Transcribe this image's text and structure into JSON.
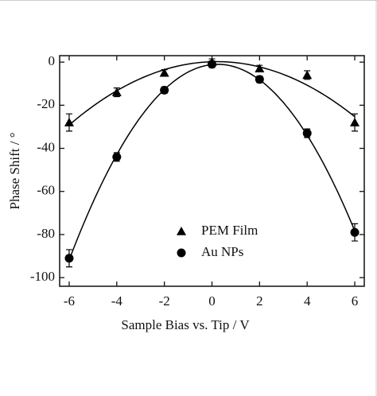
{
  "chart_data": {
    "type": "scatter",
    "xlabel": "Sample Bias vs. Tip / V",
    "ylabel": "Phase Shift / °",
    "xlim": [
      -6.4,
      6.4
    ],
    "ylim": [
      -104,
      3
    ],
    "xticks": [
      -6,
      -4,
      -2,
      0,
      2,
      4,
      6
    ],
    "yticks": [
      0,
      -20,
      -40,
      -60,
      -80,
      -100
    ],
    "legend_loc": "lower center",
    "fit": "quadratic",
    "series": [
      {
        "name": "PEM Film",
        "color": "#000000",
        "marker": "triangle",
        "x": [
          -6,
          -4,
          -2,
          0,
          2,
          4,
          6
        ],
        "values": [
          -28,
          -14,
          -5,
          0,
          -3,
          -6,
          -28
        ],
        "errors": [
          4,
          2,
          1.5,
          1.5,
          1.5,
          2,
          4
        ]
      },
      {
        "name": "Au NPs",
        "color": "#000000",
        "marker": "circle",
        "x": [
          -6,
          -4,
          -2,
          0,
          2,
          4,
          6
        ],
        "values": [
          -91,
          -44,
          -13,
          -1,
          -8,
          -33,
          -79
        ],
        "errors": [
          4,
          2,
          1.5,
          1.5,
          1.5,
          2,
          4
        ]
      }
    ]
  }
}
